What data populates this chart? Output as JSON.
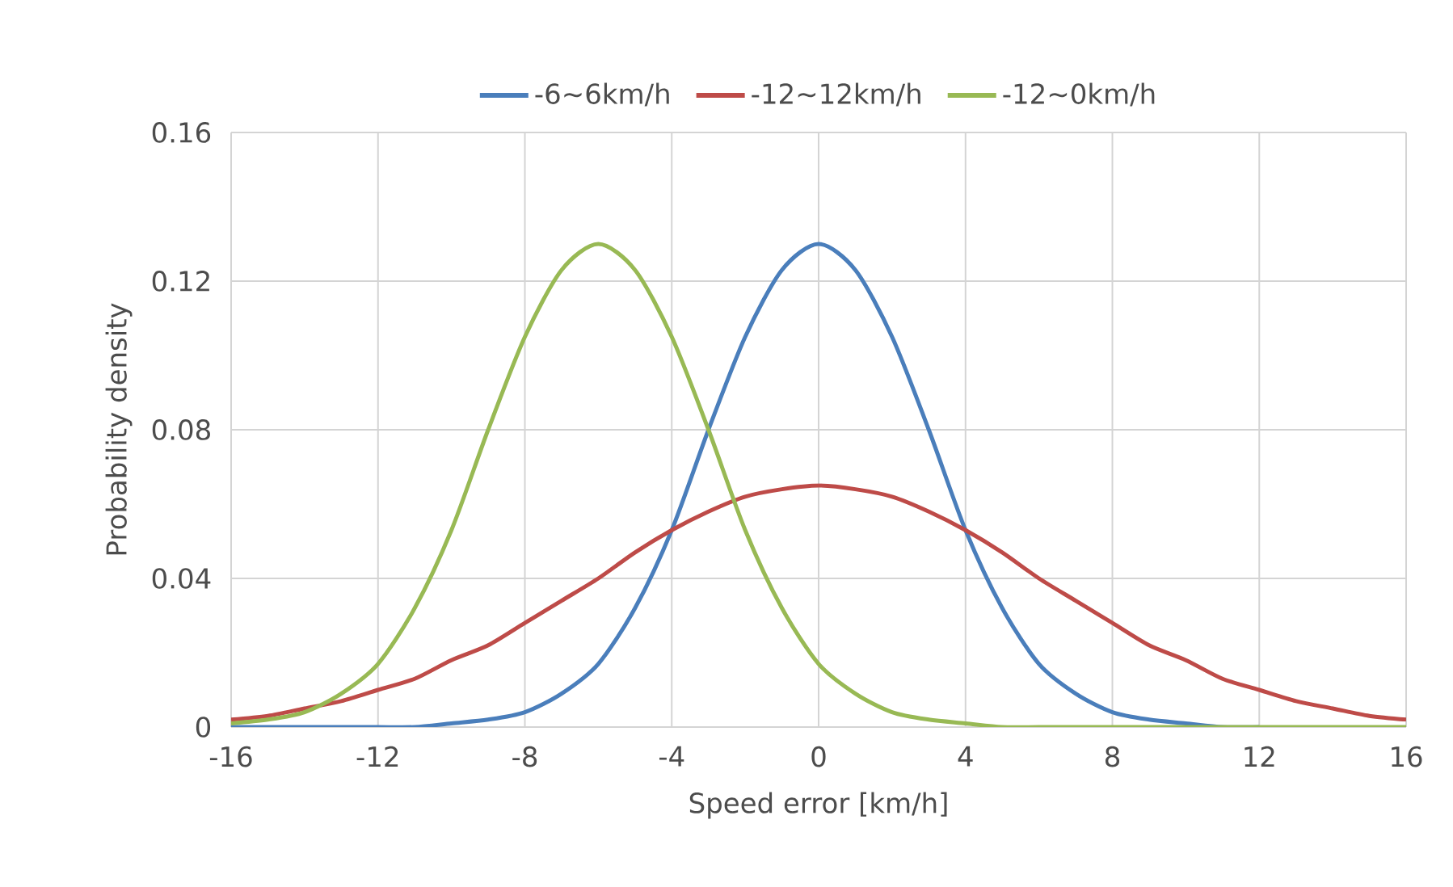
{
  "chart_data": {
    "type": "line",
    "xlabel": "Speed error [km/h]",
    "ylabel": "Probability density",
    "x": [
      -16,
      -15,
      -14,
      -13,
      -12,
      -11,
      -10,
      -9,
      -8,
      -7,
      -6,
      -5,
      -4,
      -3,
      -2,
      -1,
      0,
      1,
      2,
      3,
      4,
      5,
      6,
      7,
      8,
      9,
      10,
      11,
      12,
      13,
      14,
      15,
      16
    ],
    "series": [
      {
        "name": "-6~6km/h",
        "color": "#4a7ebb",
        "values": [
          0,
          0,
          0,
          0,
          0,
          0,
          0.001,
          0.002,
          0.004,
          0.009,
          0.017,
          0.032,
          0.053,
          0.08,
          0.105,
          0.123,
          0.13,
          0.123,
          0.105,
          0.08,
          0.053,
          0.032,
          0.017,
          0.009,
          0.004,
          0.002,
          0.001,
          0,
          0,
          null,
          null,
          null,
          null
        ]
      },
      {
        "name": "-12~12km/h",
        "color": "#be4b48",
        "values": [
          0.002,
          0.003,
          0.005,
          0.007,
          0.01,
          0.013,
          0.018,
          0.022,
          0.028,
          0.034,
          0.04,
          0.047,
          0.053,
          0.058,
          0.062,
          0.064,
          0.065,
          0.064,
          0.062,
          0.058,
          0.053,
          0.047,
          0.04,
          0.034,
          0.028,
          0.022,
          0.018,
          0.013,
          0.01,
          0.007,
          0.005,
          0.003,
          0.002
        ]
      },
      {
        "name": "-12~0km/h",
        "color": "#98b954",
        "values": [
          0.001,
          0.002,
          0.004,
          0.009,
          0.017,
          0.032,
          0.053,
          0.08,
          0.105,
          0.123,
          0.13,
          0.123,
          0.105,
          0.08,
          0.053,
          0.032,
          0.017,
          0.009,
          0.004,
          0.002,
          0.001,
          0,
          0,
          0,
          0,
          0,
          0,
          0,
          0,
          0,
          0,
          0,
          0
        ]
      }
    ],
    "xlim": [
      -16,
      16
    ],
    "ylim": [
      0,
      0.16
    ],
    "xticks": [
      -16,
      -12,
      -8,
      -4,
      0,
      4,
      8,
      12,
      16
    ],
    "yticks": [
      {
        "value": 0,
        "label": "0"
      },
      0.04,
      0.08,
      0.12,
      0.16
    ],
    "grid": true,
    "legend": "top",
    "marker": "none",
    "line_style": "solid"
  }
}
